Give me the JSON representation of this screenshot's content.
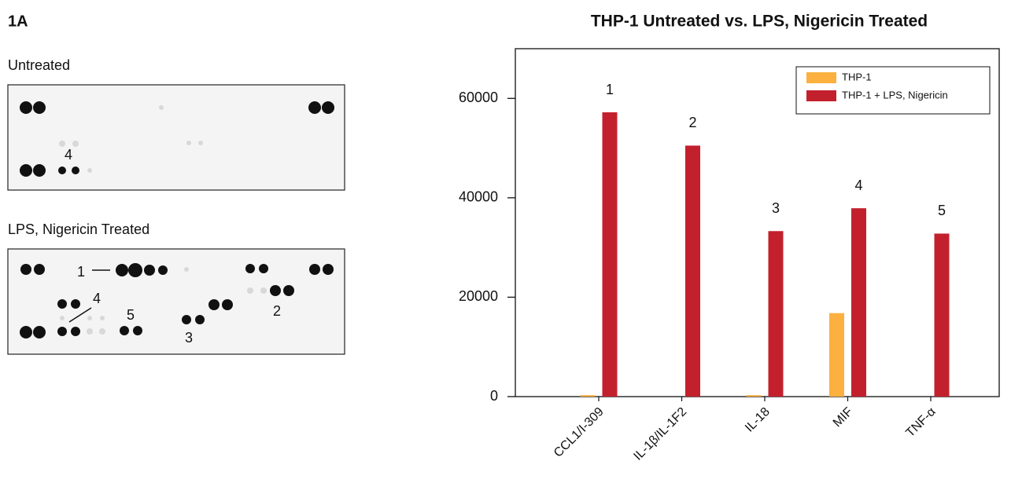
{
  "panel": {
    "label": "1A",
    "untreated_title": "Untreated",
    "treated_title": "LPS, Nigericin Treated",
    "untreated_spot_labels": [
      "4"
    ],
    "treated_spot_labels": [
      "1",
      "4",
      "5",
      "3",
      "2"
    ]
  },
  "chart_data": {
    "type": "bar",
    "title": "THP-1 Untreated vs. LPS, Nigericin Treated",
    "categories": [
      "CCL1/I-309",
      "IL-1β/IL-1F2",
      "IL-18",
      "MIF",
      "TNF-α"
    ],
    "series": [
      {
        "name": "THP-1",
        "color": "#fbb040",
        "values": [
          300,
          0,
          300,
          16800,
          0
        ]
      },
      {
        "name": "THP-1 + LPS, Nigericin",
        "color": "#c3202e",
        "values": [
          57200,
          50500,
          33300,
          37900,
          32800
        ]
      }
    ],
    "annotations": [
      "1",
      "2",
      "3",
      "4",
      "5"
    ],
    "ylim": [
      0,
      70000
    ],
    "yticks": [
      0,
      20000,
      40000,
      60000
    ],
    "grid": false,
    "legend": "top-right"
  }
}
